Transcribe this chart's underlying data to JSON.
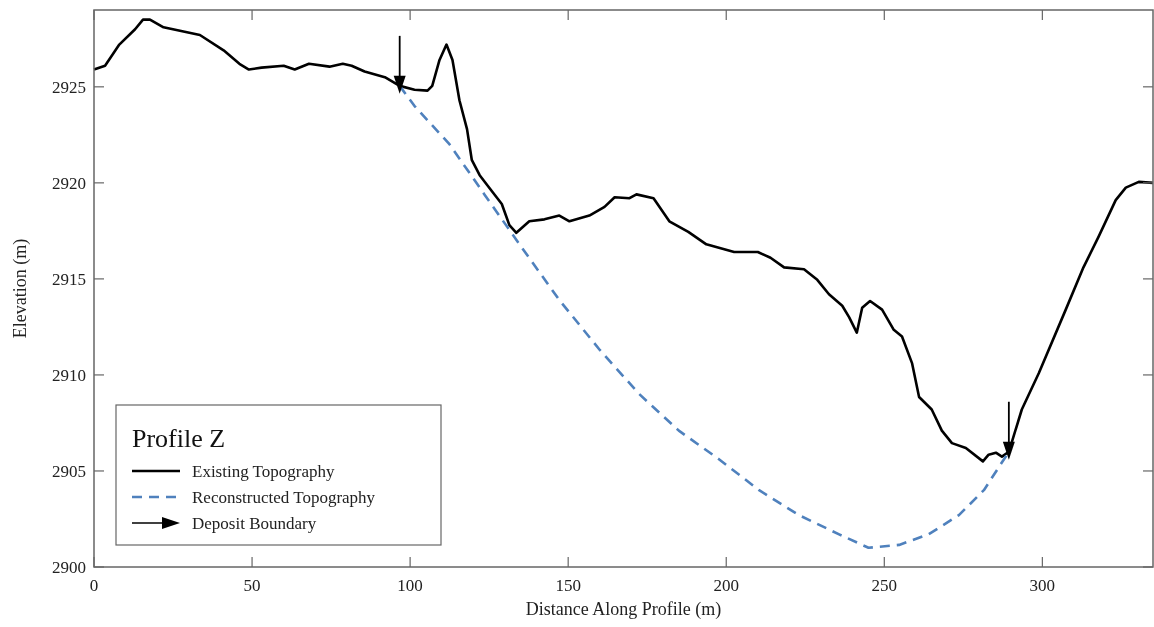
{
  "chart_data": {
    "type": "line",
    "xlabel": "Distance Along Profile (m)",
    "ylabel": "Elevation (m)",
    "legend_title": "Profile Z",
    "legend": "bottom left",
    "grid": false,
    "xlim": [
      0,
      335
    ],
    "ylim": [
      2900,
      2929
    ],
    "xticks": [
      0,
      50,
      100,
      150,
      200,
      250,
      300
    ],
    "yticks": [
      2900,
      2905,
      2910,
      2915,
      2920,
      2925
    ],
    "series": [
      {
        "name": "Existing Topography",
        "color": "#000000",
        "line_style": "solid",
        "x": [
          0,
          3.5,
          8,
          13,
          15.5,
          17.7,
          22,
          33.5,
          41,
          46,
          49,
          53,
          60,
          63.5,
          68,
          74.5,
          78.7,
          81.5,
          85.6,
          92,
          96.7,
          101.4,
          105.5,
          107,
          109.3,
          111.5,
          113.4,
          115.6,
          118,
          119.5,
          122,
          125.7,
          129,
          131.4,
          133.6,
          137.7,
          142.5,
          147.2,
          150.4,
          156.7,
          161.5,
          164.7,
          169.4,
          171.6,
          177,
          182,
          188,
          193.7,
          202.5,
          210,
          214,
          218.3,
          224.6,
          228.8,
          232.5,
          236.7,
          238.9,
          241.3,
          243,
          245.5,
          249.3,
          253,
          255.6,
          258.8,
          261,
          265,
          268.2,
          271.4,
          275.8,
          281.2,
          283,
          285.3,
          287.2,
          289.4,
          293.5,
          298.9,
          307.4,
          313,
          317.8,
          323.2,
          326.4,
          330.5,
          335
        ],
        "values": [
          2925.9,
          2926.1,
          2927.2,
          2928,
          2928.5,
          2928.5,
          2928.1,
          2927.7,
          2926.9,
          2926.2,
          2925.9,
          2926,
          2926.1,
          2925.9,
          2926.2,
          2926.05,
          2926.2,
          2926.1,
          2925.8,
          2925.5,
          2925.05,
          2924.85,
          2924.8,
          2925.05,
          2926.4,
          2927.2,
          2926.4,
          2924.3,
          2922.8,
          2921.2,
          2920.4,
          2919.6,
          2918.9,
          2917.8,
          2917.4,
          2918,
          2918.1,
          2918.3,
          2918,
          2918.3,
          2918.75,
          2919.25,
          2919.2,
          2919.4,
          2919.2,
          2918,
          2917.45,
          2916.8,
          2916.4,
          2916.4,
          2916.1,
          2915.6,
          2915.5,
          2914.95,
          2914.2,
          2913.6,
          2913,
          2912.2,
          2913.5,
          2913.85,
          2913.4,
          2912.35,
          2912,
          2910.6,
          2908.85,
          2908.2,
          2907.1,
          2906.45,
          2906.2,
          2905.5,
          2905.85,
          2905.95,
          2905.75,
          2906,
          2908.2,
          2910.1,
          2913.4,
          2915.6,
          2917.2,
          2919.1,
          2919.75,
          2920.05,
          2920
        ]
      },
      {
        "name": "Reconstructed Topography",
        "color": "#4f81bd",
        "line_style": "dashed",
        "x": [
          96.7,
          101.4,
          112.5,
          123.5,
          134.6,
          147.2,
          160,
          172.5,
          185,
          197.8,
          210.4,
          223,
          235.7,
          245,
          254.7,
          264,
          273.6,
          281.5,
          289.4
        ],
        "values": [
          2925.05,
          2924,
          2922,
          2919.4,
          2916.8,
          2913.9,
          2911.3,
          2909,
          2907.1,
          2905.6,
          2904,
          2902.7,
          2901.7,
          2901,
          2901.15,
          2901.7,
          2902.7,
          2904,
          2906
        ]
      },
      {
        "name": "Deposit Boundary",
        "type": "scatter",
        "marker": "triangle",
        "color": "#000000",
        "x": [
          96.7,
          289.4
        ],
        "values": [
          2925.05,
          2906
        ]
      }
    ]
  }
}
